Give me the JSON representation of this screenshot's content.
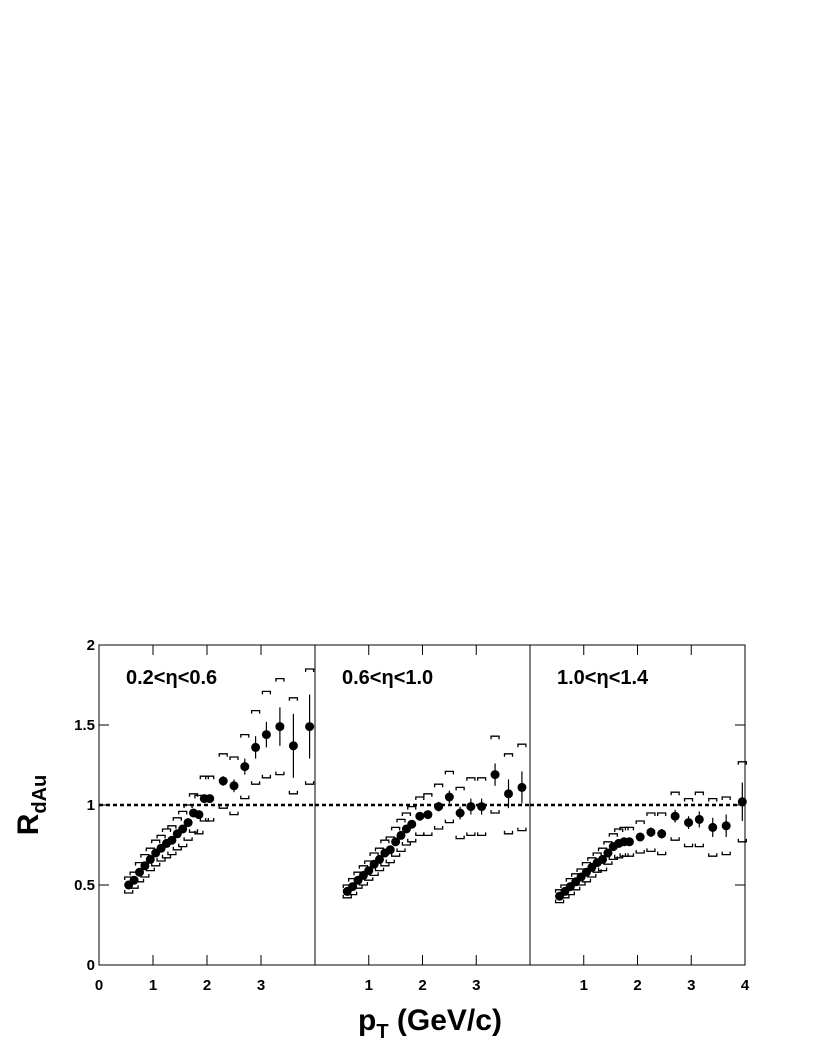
{
  "chart_data": [
    {
      "type": "scatter",
      "annotation": "0.2<η<0.6",
      "ylabel": "R",
      "ylabel_sub": "dAu",
      "xlim": [
        0,
        4
      ],
      "ylim": [
        0,
        2
      ],
      "xticks": [
        0,
        1,
        2,
        3
      ],
      "yticks": [
        0,
        0.5,
        1,
        1.5,
        2
      ],
      "reference_line": 1,
      "x": [
        0.55,
        0.65,
        0.75,
        0.85,
        0.95,
        1.05,
        1.15,
        1.25,
        1.35,
        1.45,
        1.55,
        1.65,
        1.75,
        1.85,
        1.95,
        2.05,
        2.3,
        2.5,
        2.7,
        2.9,
        3.1,
        3.35,
        3.6,
        3.9
      ],
      "values": [
        0.5,
        0.53,
        0.58,
        0.62,
        0.66,
        0.7,
        0.73,
        0.76,
        0.78,
        0.82,
        0.85,
        0.89,
        0.95,
        0.94,
        1.04,
        1.04,
        1.15,
        1.12,
        1.24,
        1.36,
        1.44,
        1.49,
        1.37,
        1.49
      ],
      "errors": [
        0.02,
        0.02,
        0.02,
        0.02,
        0.02,
        0.02,
        0.02,
        0.02,
        0.02,
        0.02,
        0.02,
        0.02,
        0.02,
        0.02,
        0.02,
        0.02,
        0.03,
        0.04,
        0.05,
        0.07,
        0.08,
        0.12,
        0.2,
        0.2
      ],
      "sys": [
        0.05,
        0.05,
        0.06,
        0.07,
        0.07,
        0.08,
        0.08,
        0.09,
        0.09,
        0.1,
        0.11,
        0.11,
        0.12,
        0.12,
        0.14,
        0.14,
        0.17,
        0.18,
        0.2,
        0.23,
        0.27,
        0.3,
        0.3,
        0.36
      ],
      "color": "#000000"
    },
    {
      "type": "scatter",
      "annotation": "0.6<η<1.0",
      "xlabel": "p",
      "xlabel_sub": "T",
      "xlabel_rest": " (GeV/c)",
      "xlim": [
        0,
        4
      ],
      "ylim": [
        0,
        2
      ],
      "xticks": [
        1,
        2,
        3
      ],
      "reference_line": 1,
      "x": [
        0.6,
        0.7,
        0.8,
        0.9,
        1.0,
        1.1,
        1.2,
        1.3,
        1.4,
        1.5,
        1.6,
        1.7,
        1.8,
        1.95,
        2.1,
        2.3,
        2.5,
        2.7,
        2.9,
        3.1,
        3.35,
        3.6,
        3.85
      ],
      "values": [
        0.46,
        0.49,
        0.53,
        0.56,
        0.59,
        0.63,
        0.66,
        0.7,
        0.72,
        0.77,
        0.81,
        0.85,
        0.88,
        0.93,
        0.94,
        0.99,
        1.05,
        0.95,
        0.99,
        0.99,
        1.19,
        1.07,
        1.11
      ],
      "errors": [
        0.02,
        0.02,
        0.02,
        0.02,
        0.02,
        0.02,
        0.02,
        0.02,
        0.02,
        0.02,
        0.02,
        0.02,
        0.02,
        0.02,
        0.02,
        0.03,
        0.04,
        0.04,
        0.05,
        0.05,
        0.07,
        0.09,
        0.1
      ],
      "sys": [
        0.04,
        0.05,
        0.05,
        0.06,
        0.06,
        0.07,
        0.07,
        0.08,
        0.08,
        0.09,
        0.1,
        0.1,
        0.11,
        0.12,
        0.13,
        0.14,
        0.16,
        0.16,
        0.18,
        0.18,
        0.24,
        0.25,
        0.27
      ],
      "color": "#000000"
    },
    {
      "type": "scatter",
      "annotation": "1.0<η<1.4",
      "xlim": [
        0,
        4
      ],
      "ylim": [
        0,
        2
      ],
      "xticks": [
        1,
        2,
        3,
        4
      ],
      "reference_line": 1,
      "x": [
        0.55,
        0.65,
        0.75,
        0.85,
        0.95,
        1.05,
        1.15,
        1.25,
        1.35,
        1.45,
        1.55,
        1.65,
        1.75,
        1.85,
        2.05,
        2.25,
        2.45,
        2.7,
        2.95,
        3.15,
        3.4,
        3.65,
        3.95
      ],
      "values": [
        0.43,
        0.46,
        0.49,
        0.52,
        0.55,
        0.58,
        0.61,
        0.64,
        0.66,
        0.7,
        0.74,
        0.76,
        0.77,
        0.77,
        0.8,
        0.83,
        0.82,
        0.93,
        0.89,
        0.91,
        0.86,
        0.87,
        1.02
      ],
      "errors": [
        0.02,
        0.02,
        0.02,
        0.02,
        0.02,
        0.02,
        0.02,
        0.02,
        0.02,
        0.02,
        0.02,
        0.02,
        0.02,
        0.02,
        0.02,
        0.03,
        0.03,
        0.04,
        0.04,
        0.05,
        0.06,
        0.07,
        0.12
      ],
      "sys": [
        0.04,
        0.04,
        0.05,
        0.05,
        0.05,
        0.06,
        0.06,
        0.06,
        0.07,
        0.07,
        0.08,
        0.09,
        0.09,
        0.09,
        0.1,
        0.12,
        0.13,
        0.15,
        0.15,
        0.17,
        0.18,
        0.18,
        0.25
      ],
      "color": "#000000"
    }
  ]
}
